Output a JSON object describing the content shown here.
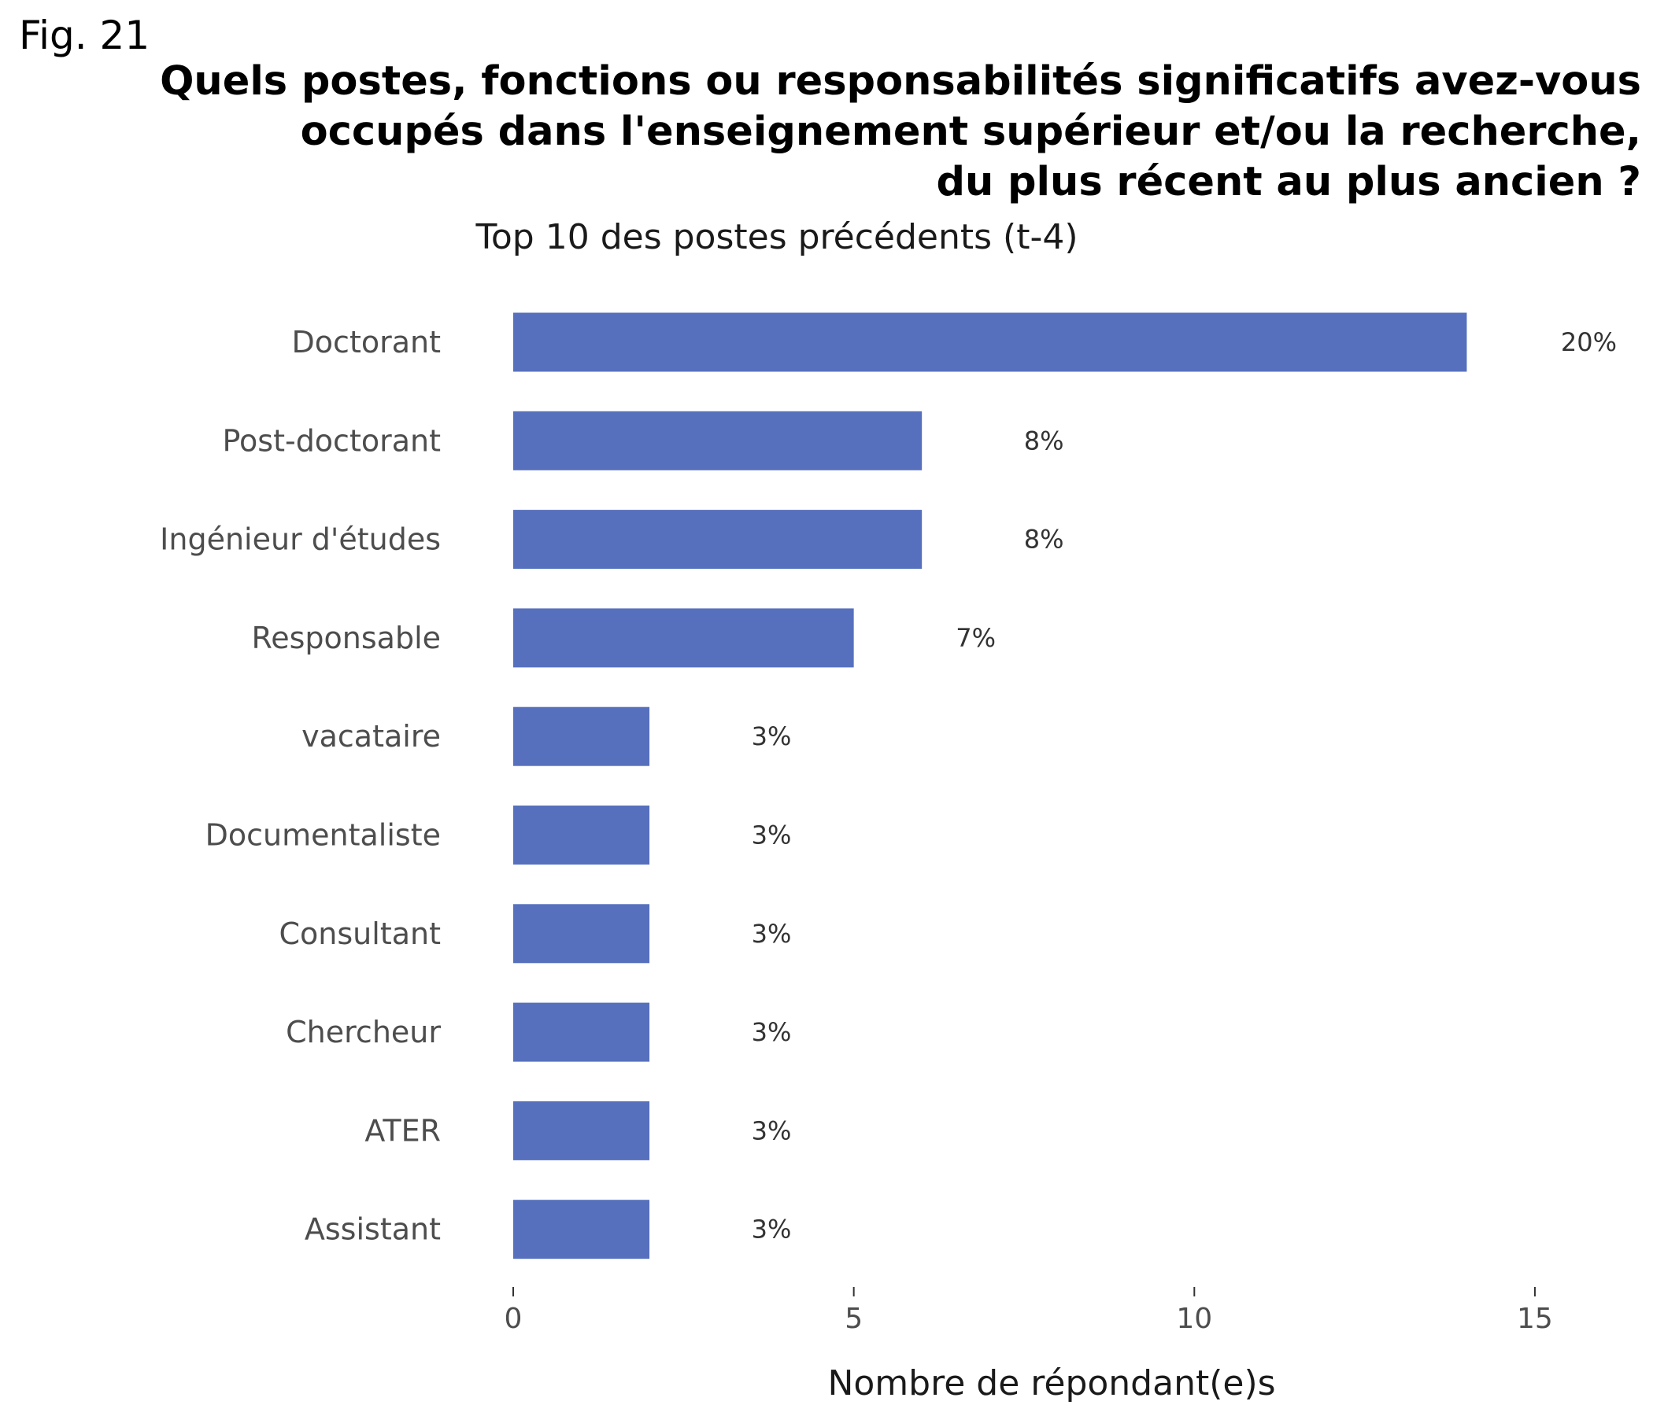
{
  "figure": {
    "label": "Fig. 21",
    "title_lines": [
      "Quels postes, fonctions ou responsabilités significatifs avez-vous",
      "occupés dans l'enseignement supérieur et/ou la recherche,",
      "du plus récent au plus ancien ?"
    ],
    "subtitle": "Top 10 des postes précédents (t-4)"
  },
  "chart_data": {
    "type": "bar",
    "orientation": "horizontal",
    "title": "Quels postes, fonctions ou responsabilités significatifs avez-vous occupés dans l'enseignement supérieur et/ou la recherche, du plus récent au plus ancien ?",
    "subtitle": "Top 10 des postes précédents (t-4)",
    "xlabel": "Nombre de répondant(e)s",
    "ylabel": "",
    "categories": [
      "Doctorant",
      "Post-doctorant",
      "Ingénieur d'études",
      "Responsable",
      "vacataire",
      "Documentaliste",
      "Consultant",
      "Chercheur",
      "ATER",
      "Assistant"
    ],
    "values": [
      14,
      6,
      6,
      5,
      2,
      2,
      2,
      2,
      2,
      2
    ],
    "value_labels": [
      "20%",
      "8%",
      "8%",
      "7%",
      "3%",
      "3%",
      "3%",
      "3%",
      "3%",
      "3%"
    ],
    "xlim": [
      0,
      15
    ],
    "xticks": [
      0,
      5,
      10,
      15
    ],
    "grid": false,
    "legend": "none",
    "bar_color": "#5670BD"
  }
}
